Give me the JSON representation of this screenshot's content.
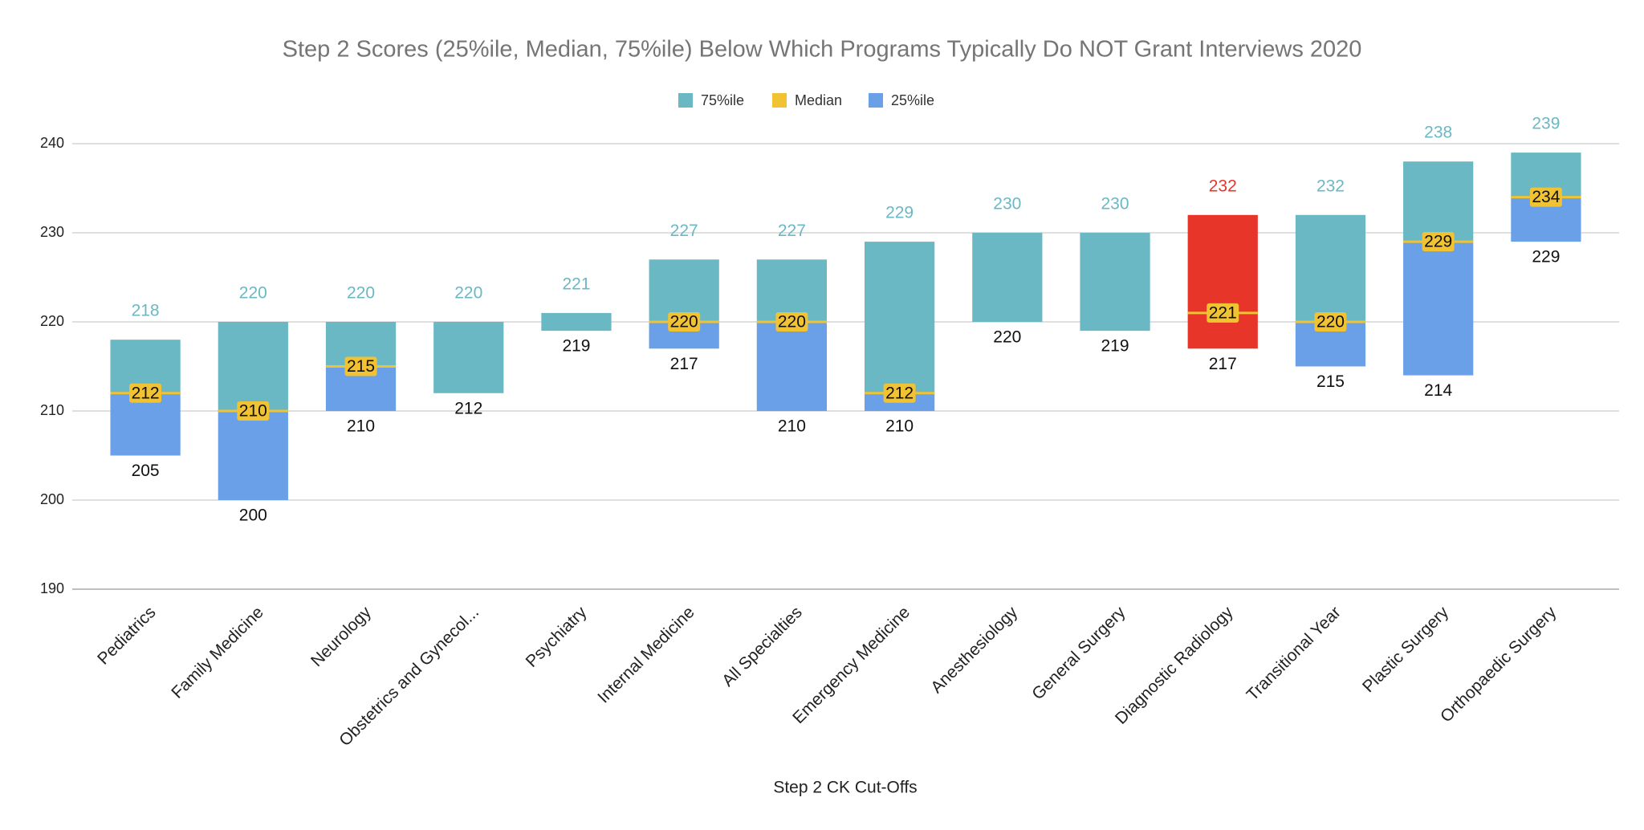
{
  "chart_data": {
    "type": "floating_bar",
    "title": "Step 2 Scores (25%ile, Median, 75%ile) Below Which Programs Typically Do NOT Grant Interviews 2020",
    "x_label": "Step 2 CK Cut-Offs",
    "categories": [
      "Pediatrics",
      "Family Medicine",
      "Neurology",
      "Obstetrics and Gynecol...",
      "Psychiatry",
      "Internal Medicine",
      "All Specialties",
      "Emergency Medicine",
      "Anesthesiology",
      "General Surgery",
      "Diagnostic Radiology",
      "Transitional Year",
      "Plastic Surgery",
      "Orthopaedic Surgery"
    ],
    "series": [
      {
        "name": "75%ile",
        "color": "#6ab8c4",
        "values": [
          218,
          220,
          220,
          220,
          221,
          227,
          227,
          229,
          230,
          230,
          232,
          232,
          238,
          239
        ]
      },
      {
        "name": "Median",
        "color": "#f1c232",
        "values": [
          212,
          210,
          215,
          null,
          null,
          220,
          220,
          212,
          null,
          null,
          221,
          220,
          229,
          234
        ]
      },
      {
        "name": "25%ile",
        "color": "#6aa0e8",
        "values": [
          205,
          200,
          210,
          212,
          219,
          217,
          210,
          210,
          220,
          219,
          217,
          215,
          214,
          229
        ]
      }
    ],
    "highlight": {
      "category": "Diagnostic Radiology",
      "color": "#e8352a"
    },
    "ylim": [
      190,
      240
    ],
    "yticks": [
      190,
      200,
      210,
      220,
      230,
      240
    ],
    "grid": true,
    "legend": "top"
  }
}
